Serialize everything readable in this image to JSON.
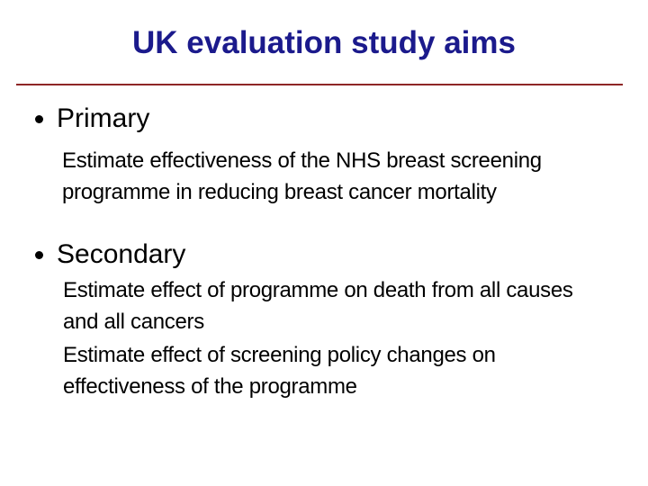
{
  "slide": {
    "title": "UK evaluation study aims",
    "colors": {
      "title_navy": "#1b1a8c",
      "rule_red": "#8e2626",
      "body_black": "#000000",
      "background": "#ffffff"
    },
    "icons": {
      "bullet": "•"
    },
    "sections": [
      {
        "label": "Primary",
        "paragraphs": [
          {
            "lines": [
              "Estimate effectiveness of the NHS breast screening",
              "programme in reducing breast cancer mortality"
            ]
          }
        ]
      },
      {
        "label": "Secondary",
        "paragraphs": [
          {
            "lines": [
              "Estimate effect of programme on death from all causes",
              "and all cancers"
            ]
          },
          {
            "lines": [
              "Estimate effect of screening policy changes on",
              "effectiveness of the programme"
            ]
          }
        ]
      }
    ]
  }
}
